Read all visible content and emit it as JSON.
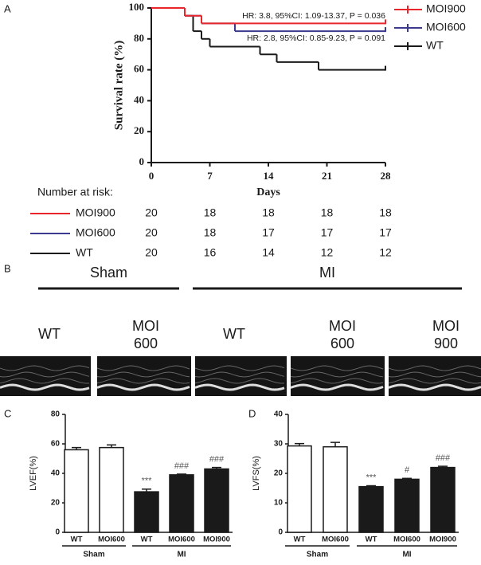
{
  "panel_labels": [
    "A",
    "B",
    "C",
    "D"
  ],
  "chart_data": [
    {
      "type": "step",
      "y_label": "Survival rate (%)",
      "x_label": "Days",
      "xlim": [
        0,
        28
      ],
      "xticks": [
        0,
        7,
        14,
        21,
        28
      ],
      "ylim": [
        0,
        100
      ],
      "yticks": [
        0,
        20,
        40,
        60,
        80,
        100
      ],
      "annotations": [
        "HR: 3.8, 95%CI: 1.09-13.37, P = 0.036",
        "HR: 2.8, 95%CI: 0.85-9.23, P = 0.091"
      ],
      "legend": "right",
      "series": [
        {
          "name": "MOI900",
          "color": "#e8262b",
          "x": [
            0,
            4,
            6,
            28
          ],
          "values": [
            100,
            95,
            90,
            90
          ]
        },
        {
          "name": "MOI600",
          "color": "#3b3a8f",
          "x": [
            0,
            4,
            6,
            10,
            28
          ],
          "values": [
            100,
            95,
            90,
            85,
            85
          ]
        },
        {
          "name": "WT",
          "color": "#1a1a1a",
          "x": [
            0,
            4,
            5,
            6,
            7,
            13,
            15,
            20,
            28
          ],
          "values": [
            100,
            95,
            85,
            80,
            75,
            70,
            65,
            60,
            60
          ]
        }
      ],
      "risk_table": {
        "title": "Number at risk:",
        "rows": [
          {
            "name": "MOI900",
            "color": "#e8262b",
            "values": [
              20,
              18,
              18,
              18,
              18
            ]
          },
          {
            "name": "MOI600",
            "color": "#3b3a8f",
            "values": [
              20,
              18,
              17,
              17,
              17
            ]
          },
          {
            "name": "WT",
            "color": "#1a1a1a",
            "values": [
              20,
              16,
              14,
              12,
              12
            ]
          }
        ]
      }
    },
    {
      "type": "bar",
      "y_label": "LVEF(%)",
      "categories": [
        "WT",
        "MOI600",
        "WT",
        "MOI600",
        "MOI900"
      ],
      "groups": [
        "Sham",
        "MI"
      ],
      "values": [
        56,
        57.5,
        27.5,
        39,
        43
      ],
      "errors": [
        1.5,
        1.8,
        1.8,
        0.5,
        1
      ],
      "colors": [
        "#ffffff",
        "#ffffff",
        "#1a1a1a",
        "#1a1a1a",
        "#1a1a1a"
      ],
      "significance": [
        null,
        null,
        "***",
        "###",
        "###"
      ],
      "ylim": [
        0,
        80
      ],
      "yticks": [
        0,
        20,
        40,
        60,
        80
      ]
    },
    {
      "type": "bar",
      "y_label": "LVFS(%)",
      "categories": [
        "WT",
        "MOI600",
        "WT",
        "MOI600",
        "MOI900"
      ],
      "groups": [
        "Sham",
        "MI"
      ],
      "values": [
        29.3,
        29,
        15.5,
        18,
        22
      ],
      "errors": [
        0.8,
        1.5,
        0.3,
        0.3,
        0.4
      ],
      "colors": [
        "#ffffff",
        "#ffffff",
        "#1a1a1a",
        "#1a1a1a",
        "#1a1a1a"
      ],
      "significance": [
        null,
        null,
        "***",
        "#",
        "###"
      ],
      "ylim": [
        0,
        40
      ],
      "yticks": [
        0,
        10,
        20,
        30,
        40
      ]
    }
  ],
  "echo": {
    "groups": [
      "Sham",
      "MI"
    ],
    "labels": [
      [
        "WT"
      ],
      [
        "MOI",
        "600"
      ],
      [
        "WT"
      ],
      [
        "MOI",
        "600"
      ],
      [
        "MOI",
        "900"
      ]
    ]
  }
}
